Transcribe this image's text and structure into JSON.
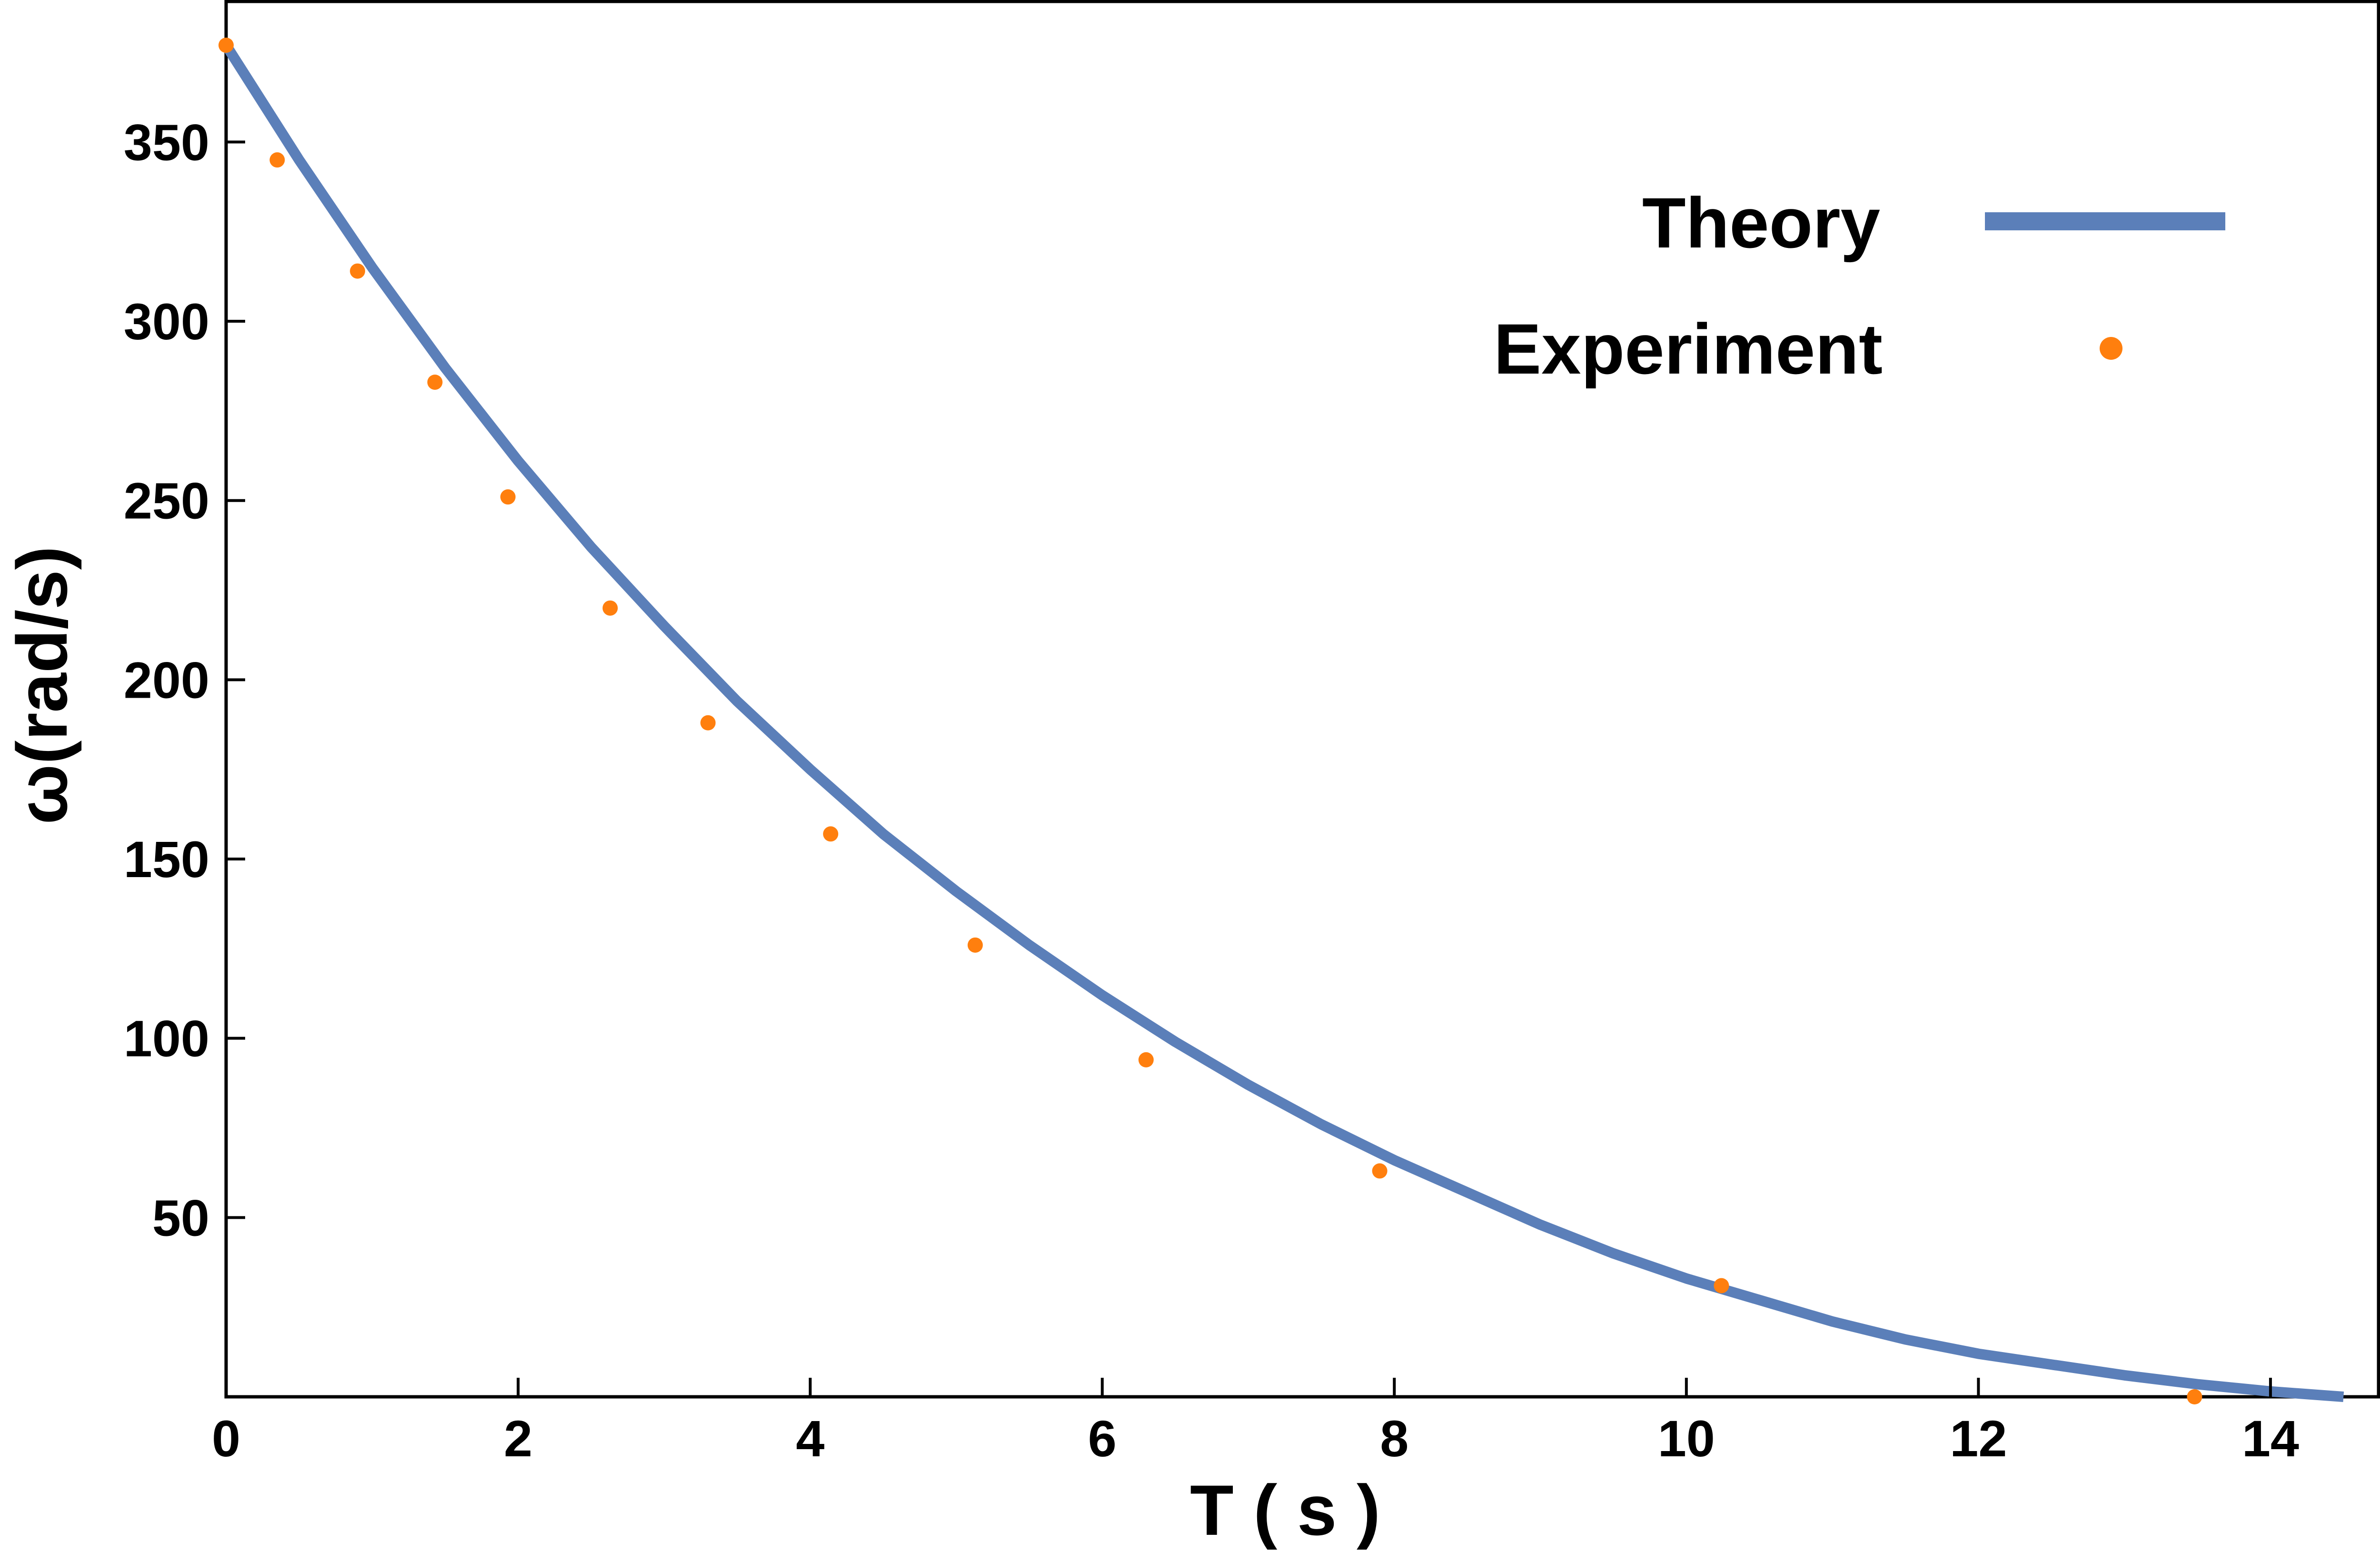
{
  "chart_data": {
    "type": "scatter",
    "title": "",
    "xlabel": "T ( s )",
    "ylabel": "ω(rad/s)",
    "xlim": [
      0,
      14.75
    ],
    "ylim": [
      0,
      377
    ],
    "xticks": [
      0,
      2,
      4,
      6,
      8,
      10,
      12,
      14
    ],
    "yticks": [
      50,
      100,
      150,
      200,
      250,
      300,
      350
    ],
    "xtick_labels": [
      "0",
      "2",
      "4",
      "6",
      "8",
      "10",
      "12",
      "14"
    ],
    "ytick_labels": [
      "50",
      "100",
      "150",
      "200",
      "250",
      "300",
      "350"
    ],
    "grid": false,
    "legend_position": "top-right",
    "series": [
      {
        "name": "Theory",
        "kind": "line",
        "color": "#5b7fb9",
        "x": [
          0,
          0.5,
          1,
          1.5,
          2,
          2.5,
          3,
          3.5,
          4,
          4.5,
          5,
          5.5,
          6,
          6.5,
          7,
          7.5,
          8,
          8.5,
          9,
          9.5,
          10,
          10.5,
          11,
          11.5,
          12,
          12.5,
          13,
          13.5,
          14,
          14.5
        ],
        "y": [
          377,
          345,
          315,
          287,
          261,
          237,
          215,
          194,
          175,
          157,
          141,
          126,
          112,
          99,
          87,
          76,
          66,
          57,
          48,
          40,
          33,
          27,
          21,
          16,
          12,
          9,
          6,
          3.5,
          1.5,
          0
        ]
      },
      {
        "name": "Experiment",
        "kind": "scatter",
        "color": "#ff7f0e",
        "x": [
          0,
          0.35,
          0.9,
          1.43,
          1.93,
          2.63,
          3.3,
          4.14,
          5.13,
          6.3,
          7.9,
          10.24,
          13.48
        ],
        "y": [
          377,
          345,
          314,
          283,
          251,
          220,
          188,
          157,
          126,
          94,
          63,
          31,
          0
        ]
      }
    ]
  }
}
